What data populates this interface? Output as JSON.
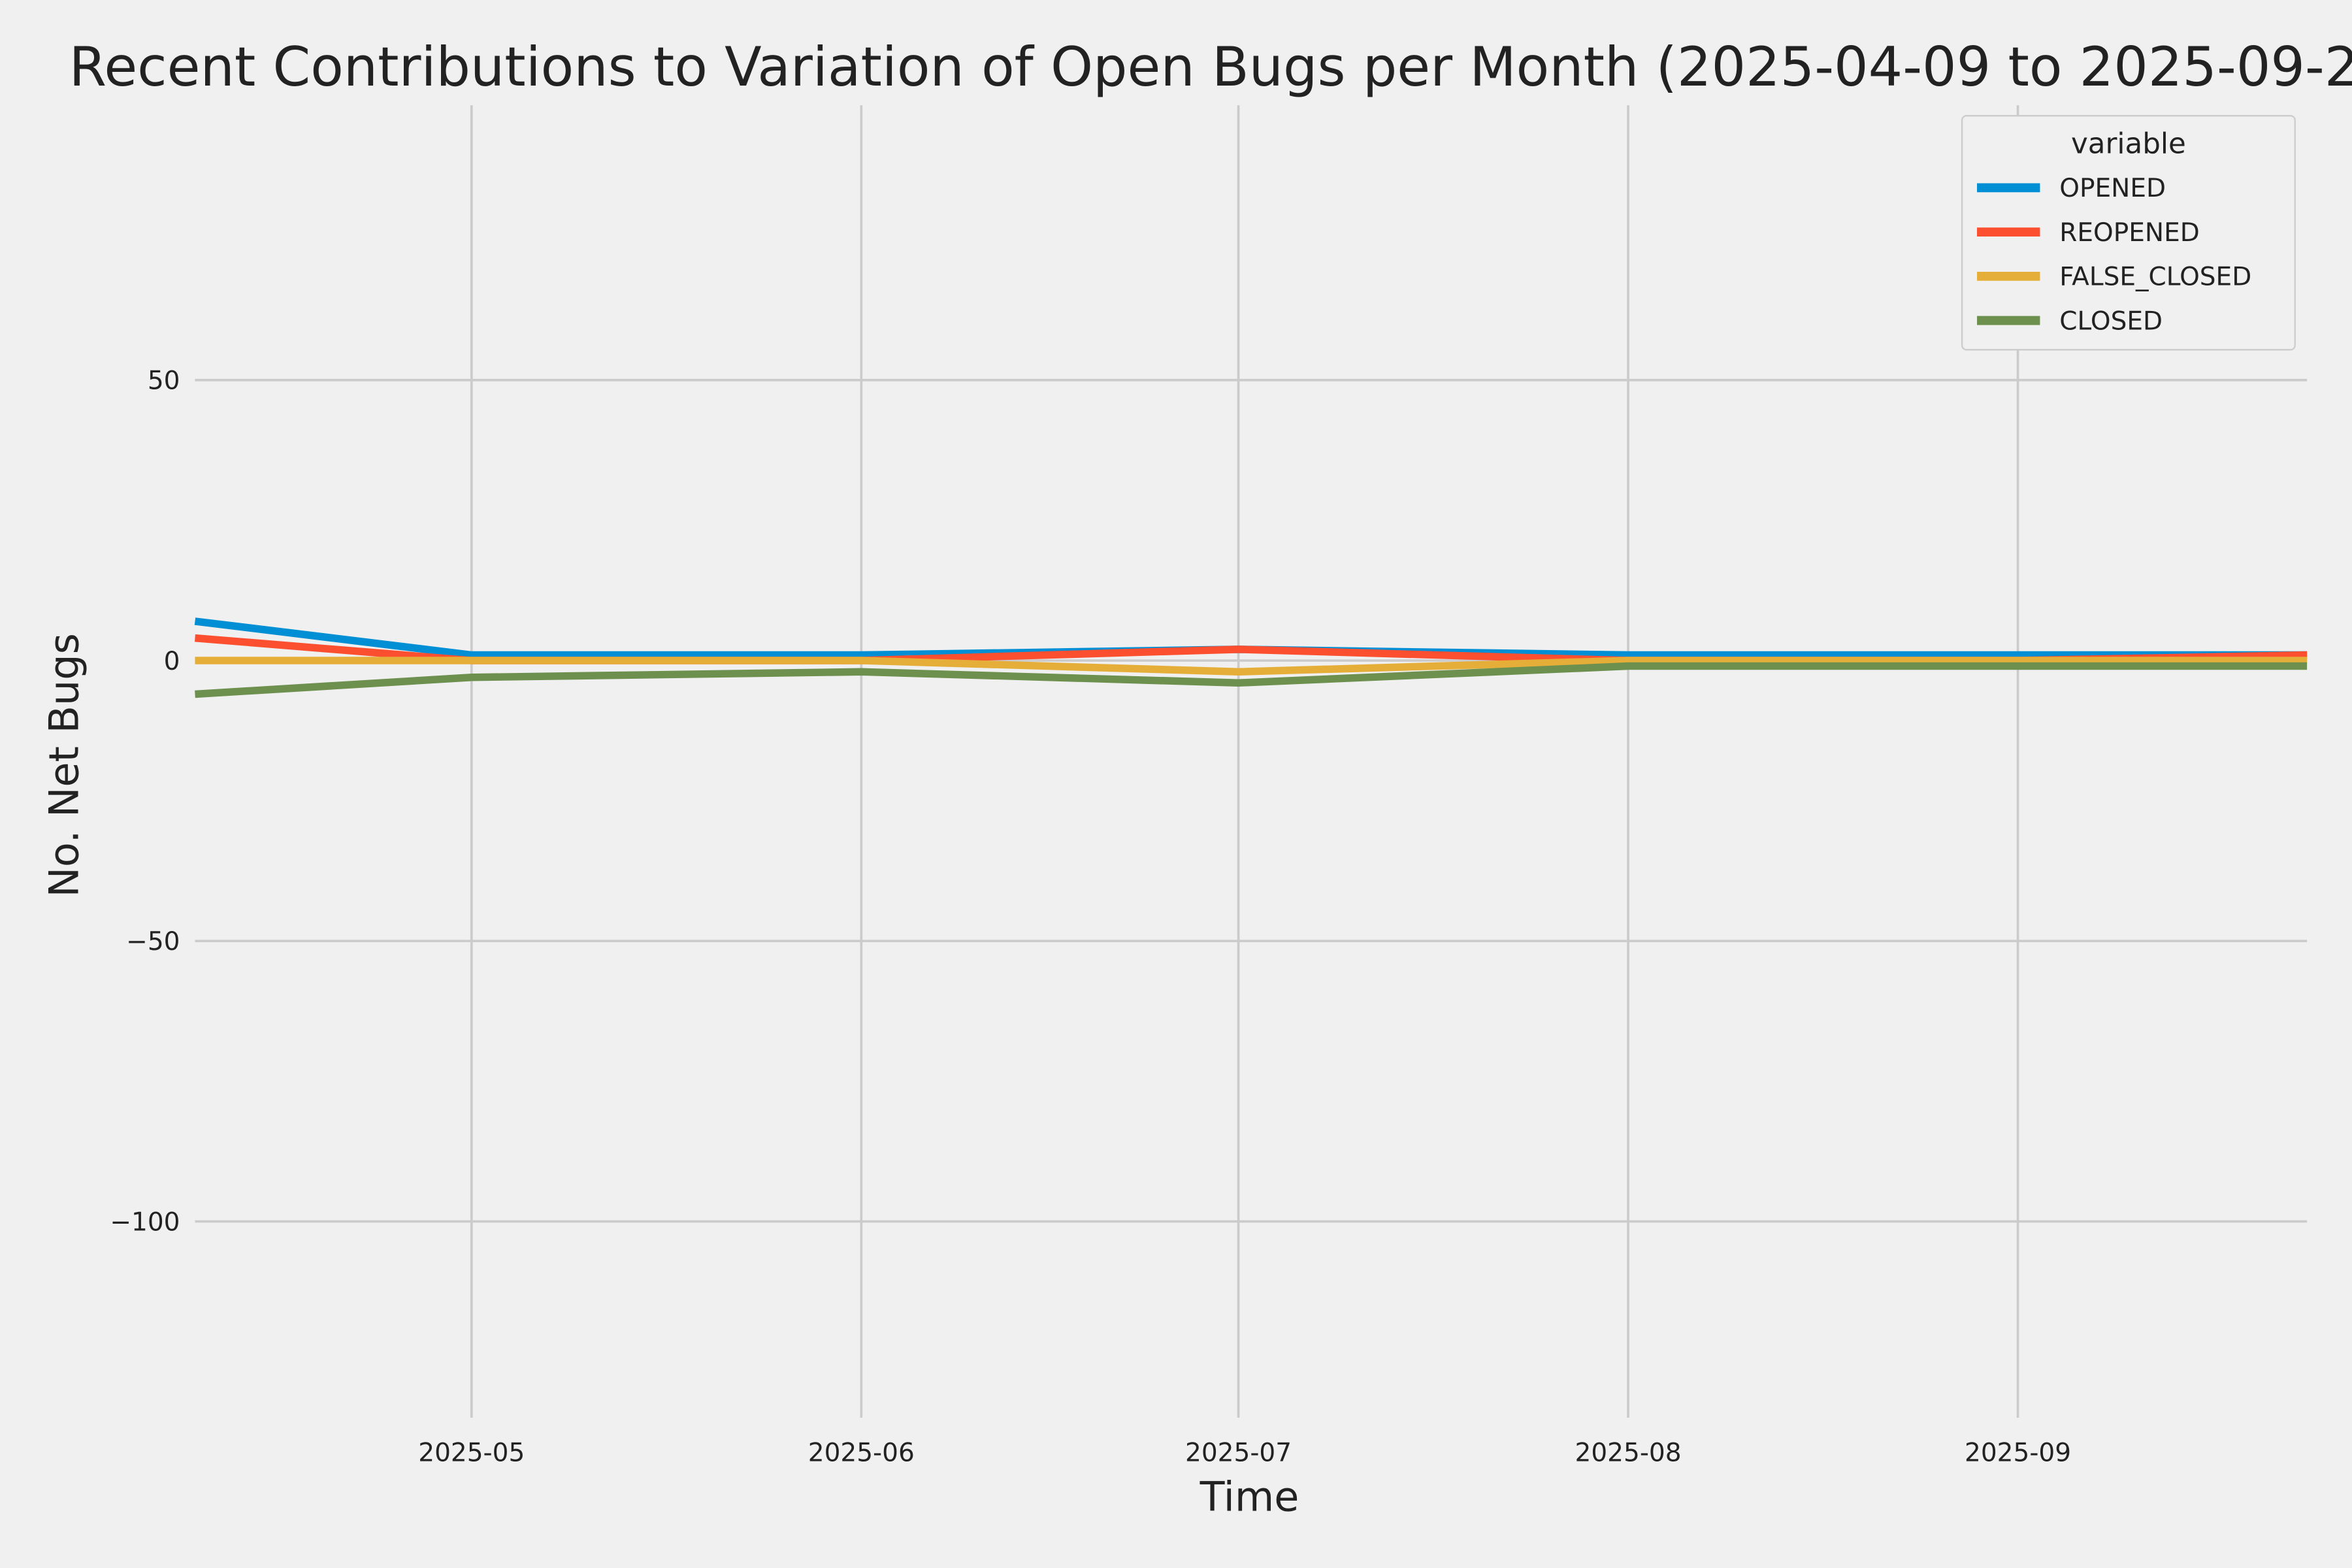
{
  "chart_data": {
    "type": "line",
    "title": "Recent Contributions to Variation of Open Bugs per Month (2025-04-09 to 2025-09-2",
    "xlabel": "Time",
    "ylabel": "No. Net Bugs",
    "x": [
      "2025-04-09",
      "2025-05-01",
      "2025-06-01",
      "2025-07-01",
      "2025-08-01",
      "2025-09-01",
      "2025-09-24"
    ],
    "xlim": [
      "2025-04-09",
      "2025-09-24"
    ],
    "ylim": [
      -135,
      99
    ],
    "xticks": [
      "2025-05",
      "2025-06",
      "2025-07",
      "2025-08",
      "2025-09"
    ],
    "xtick_dates": [
      "2025-05-01",
      "2025-06-01",
      "2025-07-01",
      "2025-08-01",
      "2025-09-01"
    ],
    "yticks": [
      50,
      0,
      -50,
      -100
    ],
    "ytick_labels": [
      "50",
      "0",
      "−50",
      "−100"
    ],
    "grid": true,
    "legend": {
      "title": "variable",
      "placement": "top-right"
    },
    "series": [
      {
        "name": "OPENED",
        "color": "#008fd5",
        "values": [
          7,
          1,
          1,
          2,
          1,
          1,
          1
        ]
      },
      {
        "name": "REOPENED",
        "color": "#fc4f30",
        "values": [
          4,
          0,
          0,
          2,
          0,
          0,
          1
        ]
      },
      {
        "name": "FALSE_CLOSED",
        "color": "#e5ae38",
        "values": [
          0,
          0,
          0,
          -2,
          0,
          0,
          0
        ]
      },
      {
        "name": "CLOSED",
        "color": "#6d904f",
        "values": [
          -6,
          -3,
          -2,
          -4,
          -1,
          -1,
          -1
        ]
      }
    ]
  }
}
